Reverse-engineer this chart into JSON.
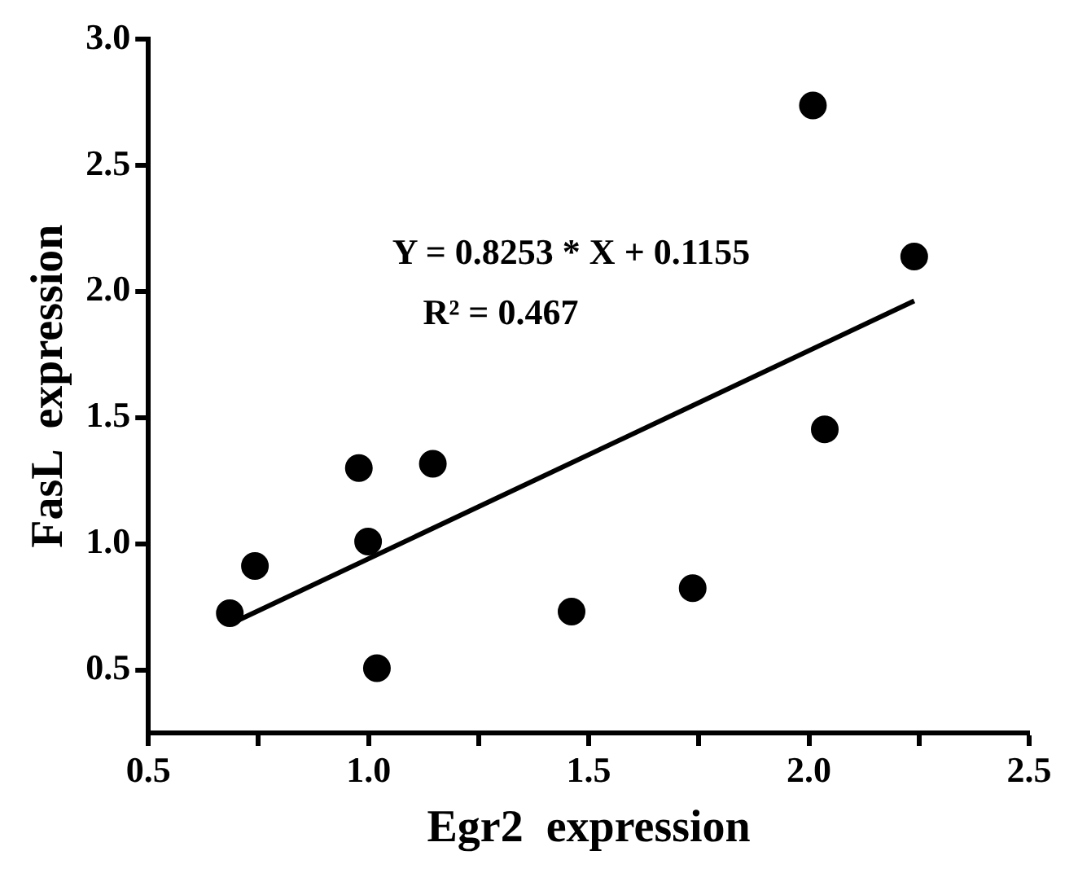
{
  "chart_data": {
    "type": "scatter",
    "xlabel": "Egr2  expression",
    "ylabel": "FasL  expression",
    "annotations": [
      "Y = 0.8253 * X + 0.1155",
      "R² = 0.467"
    ],
    "series": [
      {
        "marker": "circle",
        "color": "#000000",
        "x": [
          0.685,
          0.742,
          0.978,
          0.999,
          1.019,
          1.146,
          1.461,
          1.736,
          2.009,
          2.036,
          2.239
        ],
        "values": [
          0.725,
          0.912,
          1.3,
          1.009,
          0.507,
          1.317,
          0.731,
          0.824,
          2.738,
          1.454,
          2.139
        ]
      },
      {
        "type": "line",
        "marker": "none",
        "line_style": "solid",
        "color": "#000000",
        "x": [
          0.685,
          2.239
        ],
        "values": [
          0.681,
          1.963
        ]
      }
    ],
    "xlim": [
      0.5,
      2.5
    ],
    "xticks": [
      0.5,
      {
        "value": 0.75,
        "label": null
      },
      {
        "value": 1,
        "label": "1.0"
      },
      {
        "value": 1.25,
        "label": null
      },
      1.5,
      {
        "value": 1.75,
        "label": null
      },
      {
        "value": 2,
        "label": "2.0"
      },
      {
        "value": 2.25,
        "label": null
      },
      2.5
    ],
    "ylim": [
      0.25,
      3.0
    ],
    "yticks": [
      0.5,
      {
        "value": 1,
        "label": "1.0"
      },
      1.5,
      {
        "value": 2,
        "label": "2.0"
      },
      2.5,
      {
        "value": 3,
        "label": "3.0"
      }
    ],
    "grid": false,
    "legend": false
  }
}
